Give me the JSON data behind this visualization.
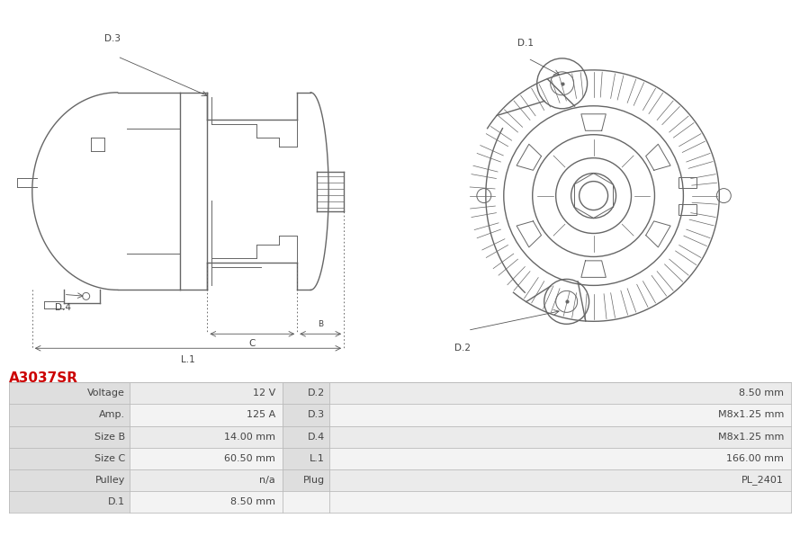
{
  "title": "A3037SR",
  "title_color": "#cc0000",
  "bg_color": "#ffffff",
  "table_rows": [
    [
      "Voltage",
      "12 V",
      "D.2",
      "8.50 mm"
    ],
    [
      "Amp.",
      "125 A",
      "D.3",
      "M8x1.25 mm"
    ],
    [
      "Size B",
      "14.00 mm",
      "D.4",
      "M8x1.25 mm"
    ],
    [
      "Size C",
      "60.50 mm",
      "L.1",
      "166.00 mm"
    ],
    [
      "Pulley",
      "n/a",
      "Plug",
      "PL_2401"
    ],
    [
      "D.1",
      "8.50 mm",
      "",
      ""
    ]
  ],
  "header_bg": "#dedede",
  "row_bg_odd": "#ebebeb",
  "row_bg_even": "#f3f3f3",
  "line_color": "#bbbbbb",
  "text_color": "#444444",
  "draw_color": "#666666",
  "dim_color": "#555555",
  "font_size": 8,
  "label_D3": "D.3",
  "label_D1": "D.1",
  "label_D2": "D.2",
  "label_D4": "D.4",
  "label_C": "C",
  "label_L1": "L.1",
  "label_B": "B"
}
